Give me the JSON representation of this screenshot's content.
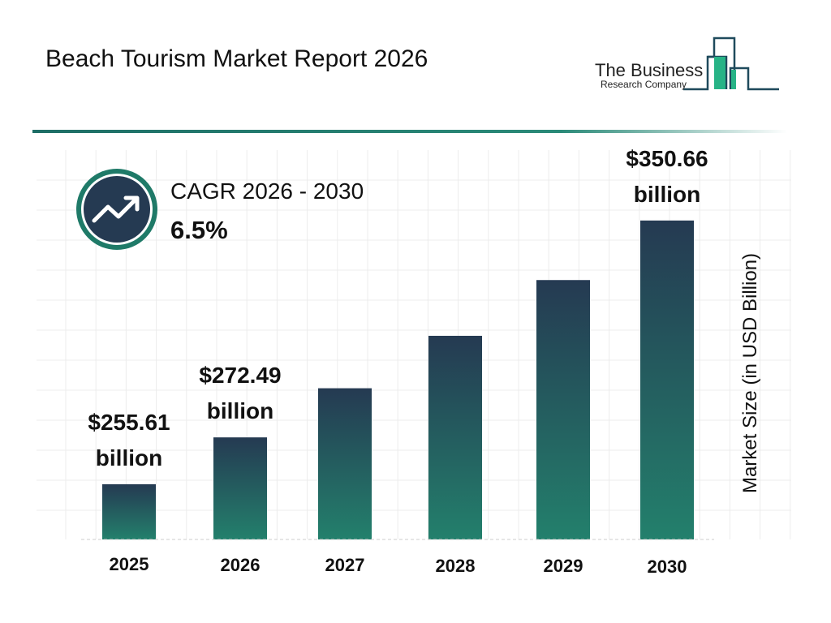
{
  "header": {
    "title": "Beach Tourism Market Report 2026"
  },
  "logo": {
    "line1": "The Business",
    "line2": "Research Company"
  },
  "cagr": {
    "label": "CAGR 2026 - 2030",
    "value": "6.5%",
    "icon": "trending-up-icon"
  },
  "colors": {
    "bar_top": "#253a52",
    "bar_bottom": "#23806c",
    "accent": "#1f7a68",
    "icon_bg": "#253a52"
  },
  "chart_data": {
    "type": "bar",
    "title": "",
    "xlabel": "",
    "ylabel": "Market Size (in USD Billion)",
    "categories": [
      "2025",
      "2026",
      "2027",
      "2028",
      "2029",
      "2030"
    ],
    "values": [
      255.61,
      272.49,
      290.2,
      309.1,
      329.2,
      350.66
    ],
    "data_labels": [
      {
        "index": 0,
        "line1": "$255.61",
        "line2": "billion"
      },
      {
        "index": 1,
        "line1": "$272.49",
        "line2": "billion"
      },
      {
        "index": 5,
        "line1": "$350.66",
        "line2": "billion"
      }
    ],
    "grid": true
  }
}
